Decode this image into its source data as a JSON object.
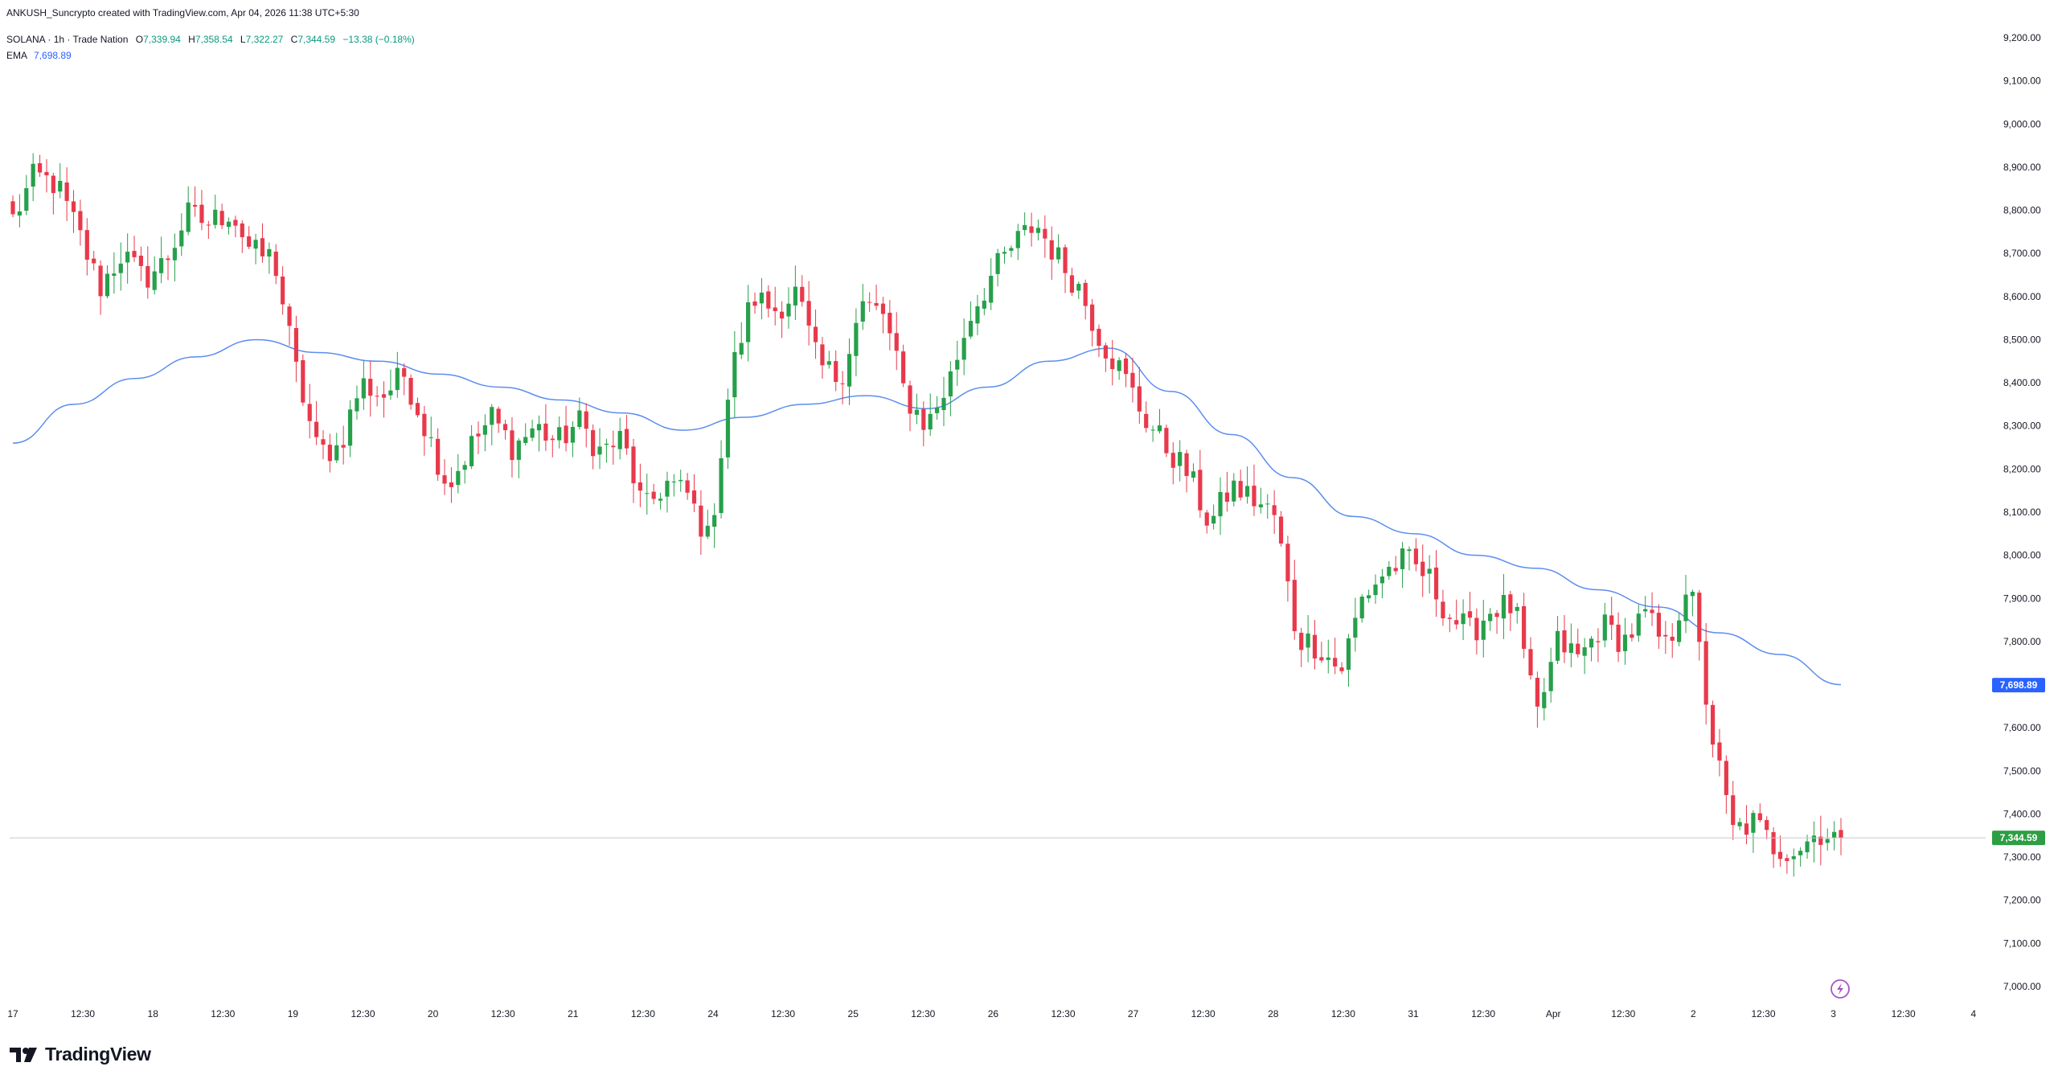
{
  "header": {
    "created": "ANKUSH_Suncrypto created with TradingView.com, Apr 04, 2026 11:38 UTC+5:30"
  },
  "legend": {
    "symbol": "SOLANA · 1h · Trade Nation",
    "o_label": "O",
    "o_value": "7,339.94",
    "h_label": "H",
    "h_value": "7,358.54",
    "l_label": "L",
    "l_value": "7,322.27",
    "c_label": "C",
    "c_value": "7,344.59",
    "change": "−13.38 (−0.18%)",
    "ema_label": "EMA",
    "ema_value": "7,698.89"
  },
  "branding": {
    "logo_text": "TradingView",
    "logo_icon": "tradingview-logo-icon"
  },
  "colors": {
    "up": "#089981",
    "down": "#f23645",
    "up_candle": "#26a04a",
    "down_candle": "#e8394b",
    "ema": "#2962ff",
    "ema_line": "#5b8def",
    "price_tag": "#2e9e44",
    "ema_tag": "#2962ff",
    "text": "#131722",
    "axis_text": "#131722"
  },
  "chart_data": {
    "type": "candlestick",
    "symbol": "SOLANA",
    "interval": "1h",
    "ylim": [
      6980,
      9240
    ],
    "y_ticks": [
      "9,200.00",
      "9,100.00",
      "9,000.00",
      "8,900.00",
      "8,800.00",
      "8,700.00",
      "8,600.00",
      "8,500.00",
      "8,400.00",
      "8,300.00",
      "8,200.00",
      "8,100.00",
      "8,000.00",
      "7,900.00",
      "7,800.00",
      "7,700.00",
      "7,600.00",
      "7,500.00",
      "7,400.00",
      "7,300.00",
      "7,200.00",
      "7,100.00",
      "7,000.00"
    ],
    "x_ticks": [
      "17",
      "12:30",
      "18",
      "12:30",
      "19",
      "12:30",
      "20",
      "12:30",
      "21",
      "12:30",
      "24",
      "12:30",
      "25",
      "12:30",
      "26",
      "12:30",
      "27",
      "12:30",
      "28",
      "12:30",
      "31",
      "12:30",
      "Apr",
      "12:30",
      "2",
      "12:30",
      "3",
      "12:30",
      "4"
    ],
    "last_price": 7344.59,
    "last_price_label": "7,344.59",
    "ema_last": 7698.89,
    "ema_last_label": "7,698.89",
    "anchors": [
      8780,
      8880,
      8860,
      8750,
      8620,
      8700,
      8640,
      8680,
      8790,
      8770,
      8800,
      8700,
      8690,
      8430,
      8240,
      8250,
      8400,
      8370,
      8420,
      8290,
      8160,
      8250,
      8320,
      8250,
      8300,
      8260,
      8310,
      8240,
      8270,
      8100,
      8170,
      8140,
      8030,
      8420,
      8600,
      8570,
      8610,
      8440,
      8410,
      8580,
      8560,
      8370,
      8300,
      8400,
      8560,
      8650,
      8720,
      8770,
      8690,
      8620,
      8500,
      8420,
      8320,
      8250,
      8190,
      8070,
      8160,
      8130,
      8090,
      7810,
      7790,
      7730,
      7900,
      7960,
      7990,
      7950,
      7860,
      7820,
      7880,
      7880,
      7620,
      7800,
      7760,
      7840,
      7800,
      7860,
      7780,
      7950,
      7600,
      7360,
      7380,
      7320,
      7320,
      7360,
      7345
    ],
    "ema": [
      8260,
      8350,
      8410,
      8460,
      8500,
      8470,
      8450,
      8420,
      8390,
      8360,
      8330,
      8290,
      8320,
      8350,
      8370,
      8340,
      8390,
      8450,
      8480,
      8380,
      8280,
      8180,
      8090,
      8050,
      8000,
      7970,
      7920,
      7880,
      7820,
      7770,
      7700
    ]
  }
}
